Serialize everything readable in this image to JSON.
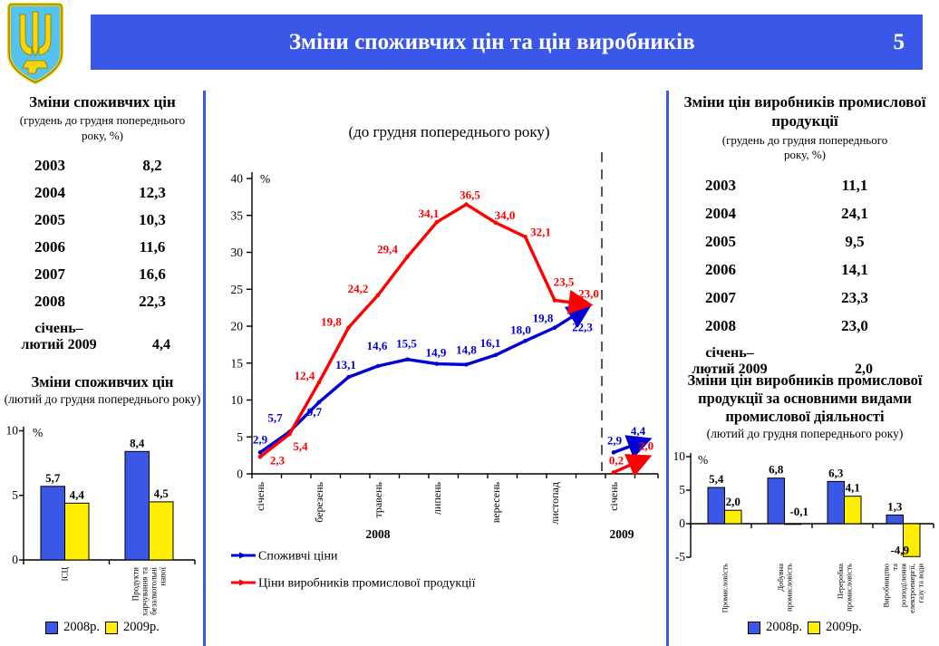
{
  "slide": {
    "title": "Зміни споживчих цін та цін виробників",
    "page_number": "5"
  },
  "colors": {
    "accent_blue": "#3b57e8",
    "series_blue": "#0000d6",
    "series_red": "#ff0000",
    "bar_blue": "#3b57e8",
    "bar_yellow": "#ffee00"
  },
  "emblem": {
    "name": "coat-of-arms-of-ukraine"
  },
  "left_panel": {
    "title": "Зміни споживчих цін",
    "subtitle": "(грудень до грудня попереднього року, %)",
    "years": [
      "2003",
      "2004",
      "2005",
      "2006",
      "2007",
      "2008"
    ],
    "values": [
      "8,2",
      "12,3",
      "10,3",
      "11,6",
      "16,6",
      "22,3"
    ],
    "period_label_line1": "січень–",
    "period_label_line2": "лютий 2009",
    "period_value": "4,4"
  },
  "right_panel": {
    "title": "Зміни цін виробників промислової продукції",
    "subtitle": "(грудень до грудня попереднього року, %)",
    "years": [
      "2003",
      "2004",
      "2005",
      "2006",
      "2007",
      "2008"
    ],
    "values": [
      "11,1",
      "24,1",
      "9,5",
      "14,1",
      "23,3",
      "23,0"
    ],
    "period_label_line1": "січень–",
    "period_label_line2": "лютий 2009",
    "period_value": "2,0"
  },
  "chart_data": [
    {
      "type": "line",
      "title": "(до грудня попереднього року)",
      "ylabel": "%",
      "ylim": [
        0,
        40
      ],
      "yticks": [
        0,
        5,
        10,
        15,
        20,
        25,
        30,
        35,
        40
      ],
      "grid": false,
      "legend_position": "bottom-left",
      "x_axis": {
        "group_2008_label": "2008",
        "group_2009_label": "2009",
        "month_labels_2008": [
          "січень",
          "березень",
          "травень",
          "липень",
          "вересень",
          "листопад"
        ],
        "month_label_2009": "січень",
        "separator": "dashed vertical line between 2008 and 2009"
      },
      "series": [
        {
          "name": "Споживчі ціни",
          "color": "#0000d6",
          "values_2008": [
            2.9,
            5.7,
            9.7,
            13.1,
            14.6,
            15.5,
            14.9,
            14.8,
            16.1,
            18.0,
            19.8,
            22.3
          ],
          "values_2009": [
            2.9,
            4.4
          ]
        },
        {
          "name": "Ціни виробників промислової продукції",
          "color": "#ff0000",
          "values_2008": [
            2.3,
            5.4,
            12.4,
            19.8,
            24.2,
            29.4,
            34.1,
            36.5,
            34.0,
            32.1,
            23.5,
            23.0
          ],
          "values_2009": [
            0.2,
            2.0
          ]
        }
      ]
    },
    {
      "type": "bar",
      "title": "Зміни споживчих цін",
      "subtitle": "(лютий до грудня попереднього року)",
      "ylabel": "%",
      "ylim": [
        0,
        10
      ],
      "yticks": [
        0,
        5,
        10
      ],
      "categories": [
        "ІСЦ",
        "Продукти харчування та безалкогольні напої"
      ],
      "series": [
        {
          "name": "2008р.",
          "color": "#3b57e8",
          "values": [
            5.7,
            8.4
          ]
        },
        {
          "name": "2009р.",
          "color": "#ffee00",
          "values": [
            4.4,
            4.5
          ]
        }
      ]
    },
    {
      "type": "bar",
      "title": "Зміни цін виробників промислової продукції за основними видами промислової діяльності",
      "subtitle": "(лютий до грудня попереднього року)",
      "ylabel": "%",
      "ylim": [
        -5,
        10
      ],
      "yticks": [
        -5,
        0,
        5,
        10
      ],
      "categories": [
        "Промисловість",
        "Добувна промисловість",
        "Переробна промисловість",
        "Виробництво та розподілення електроенергії, газу та води"
      ],
      "series": [
        {
          "name": "2008р.",
          "color": "#3b57e8",
          "values": [
            5.4,
            6.8,
            6.3,
            1.3
          ]
        },
        {
          "name": "2009р.",
          "color": "#ffee00",
          "values": [
            2.0,
            -0.1,
            4.1,
            -4.9
          ]
        }
      ]
    }
  ]
}
